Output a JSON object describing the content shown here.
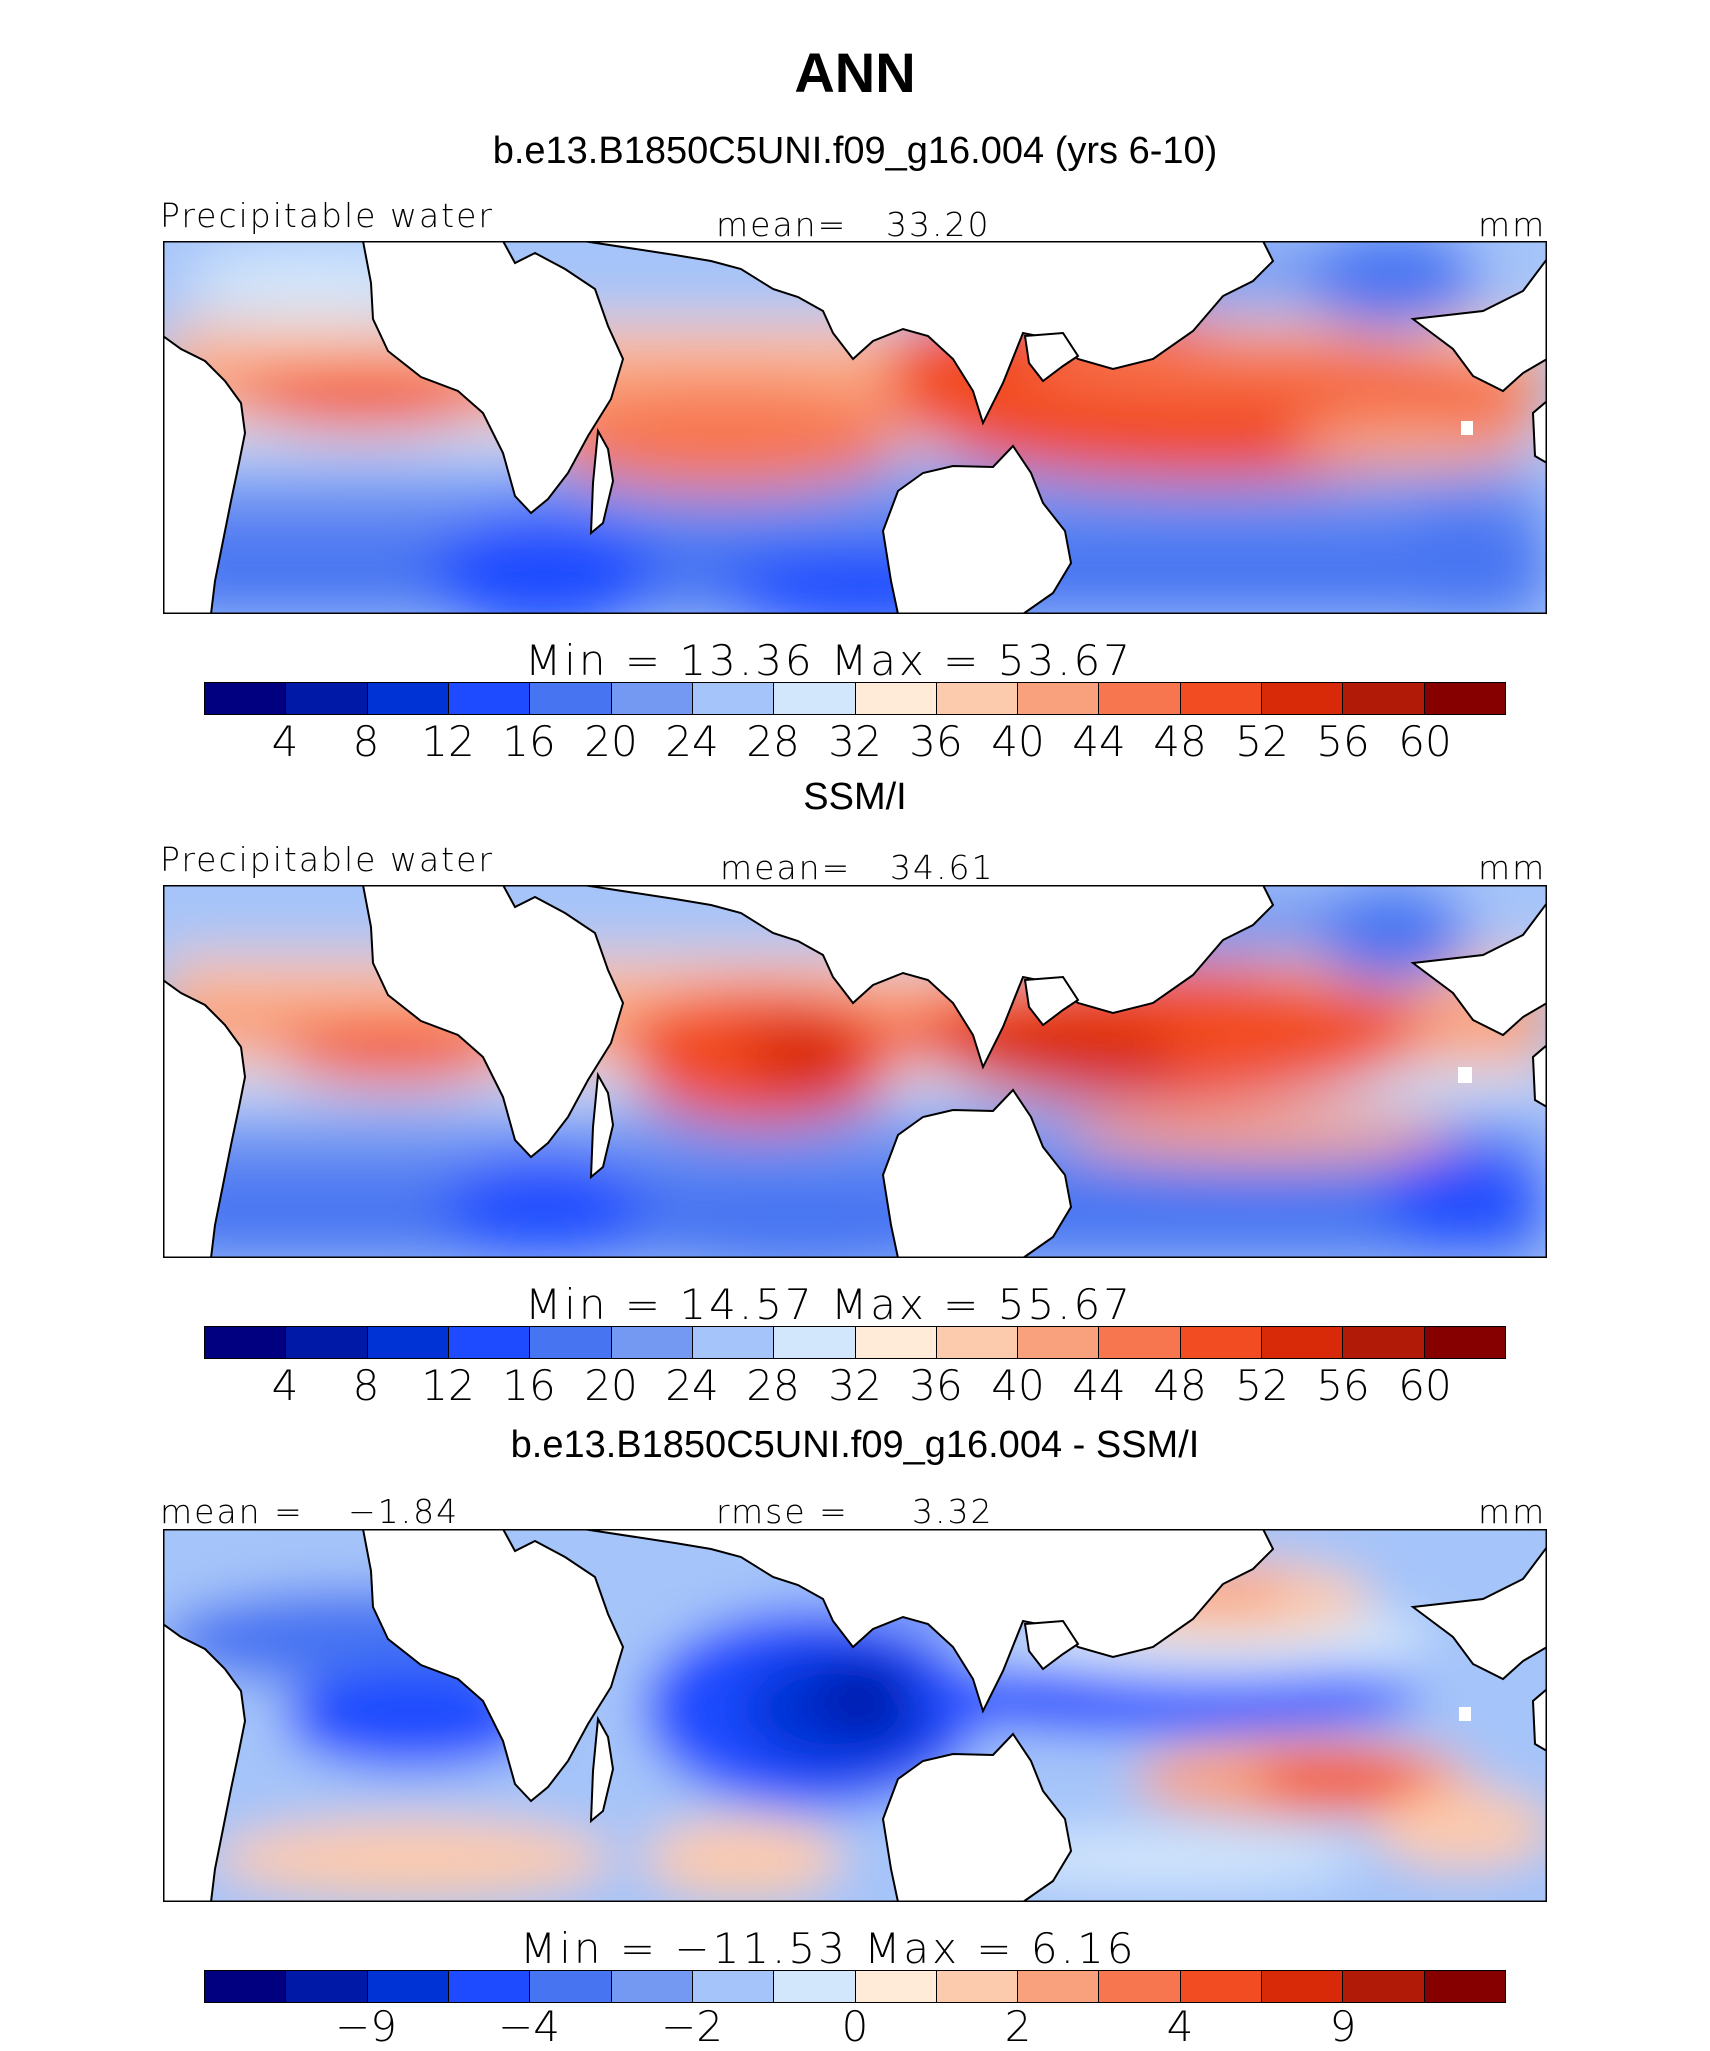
{
  "page_title": "ANN",
  "colors": [
    "#000080",
    "#0019a6",
    "#0033d5",
    "#1e4bff",
    "#4775f2",
    "#7499f2",
    "#a5c4f9",
    "#d2e6fc",
    "#ffebd7",
    "#fccaad",
    "#f9a17d",
    "#f77650",
    "#f24c22",
    "#d82a08",
    "#b01a07",
    "#860000"
  ],
  "chart_data": [
    {
      "type": "heatmap",
      "title": "b.e13.B1850C5UNI.f09_g16.004 (yrs 6-10)",
      "variable_label": "Precipitable water",
      "stat_label": "mean=",
      "stat_value": "33.20",
      "units": "mm",
      "minmax_text": "Min  =   13.36  Max  =    53.67",
      "min": 13.36,
      "max": 53.67,
      "levels": [
        "4",
        "8",
        "12",
        "16",
        "20",
        "24",
        "28",
        "32",
        "36",
        "40",
        "44",
        "48",
        "52",
        "56",
        "60"
      ]
    },
    {
      "type": "heatmap",
      "title": "SSM/I",
      "variable_label": "Precipitable water",
      "stat_label": "mean=",
      "stat_value": "34.61",
      "units": "mm",
      "minmax_text": "Min  =   14.57  Max  =    55.67",
      "min": 14.57,
      "max": 55.67,
      "levels": [
        "4",
        "8",
        "12",
        "16",
        "20",
        "24",
        "28",
        "32",
        "36",
        "40",
        "44",
        "48",
        "52",
        "56",
        "60"
      ]
    },
    {
      "type": "heatmap",
      "title": "b.e13.B1850C5UNI.f09_g16.004 - SSM/I",
      "variable_label": "mean  =",
      "variable_value": "−1.84",
      "stat_label": "rmse  =",
      "stat_value": "3.32",
      "units": "mm",
      "minmax_text": "Min  =  −11.53  Max  =     6.16",
      "min": -11.53,
      "max": 6.16,
      "levels": [
        "−9",
        "−4",
        "−2",
        "0",
        "2",
        "4",
        "9"
      ]
    }
  ]
}
